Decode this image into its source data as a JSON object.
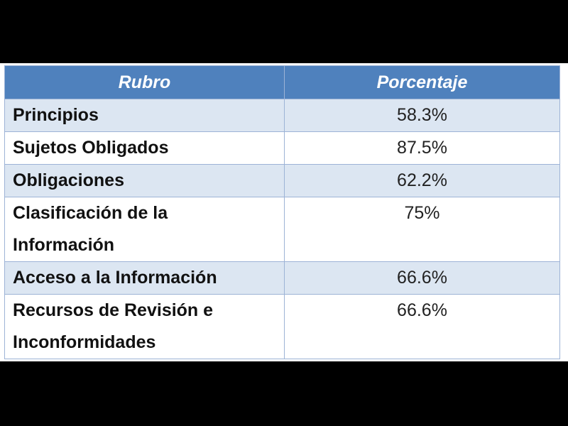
{
  "table": {
    "headers": {
      "rubro": "Rubro",
      "porcentaje": "Porcentaje"
    },
    "rows": [
      {
        "rubro": "Principios",
        "porcentaje": "58.3%"
      },
      {
        "rubro": "Sujetos Obligados",
        "porcentaje": "87.5%"
      },
      {
        "rubro": "Obligaciones",
        "porcentaje": "62.2%"
      },
      {
        "rubro_line1": "Clasificación de la",
        "rubro_line2": "Información",
        "porcentaje": "75%"
      },
      {
        "rubro": "Acceso a la Información",
        "porcentaje": "66.6%"
      },
      {
        "rubro_line1": "Recursos de Revisión e",
        "rubro_line2": "Inconformidades",
        "porcentaje": "66.6%"
      }
    ]
  },
  "colors": {
    "header_bg": "#4f81bd",
    "band_bg": "#dce6f2",
    "border": "#9db3d6"
  }
}
